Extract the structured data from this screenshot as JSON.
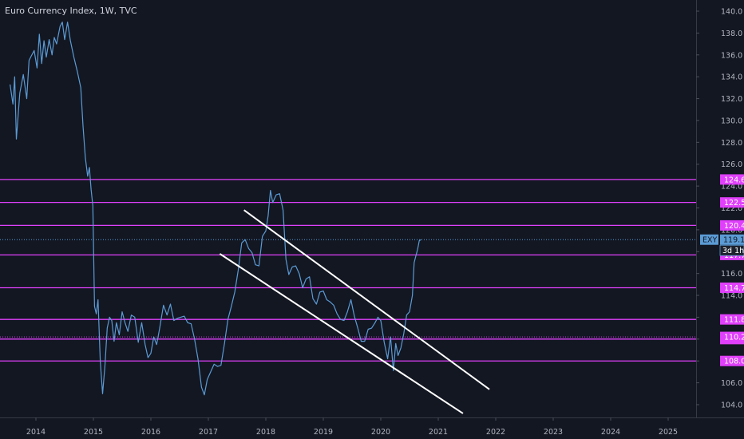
{
  "header": {
    "title": "Euro Currency Index, 1W, TVC"
  },
  "chart_data": {
    "type": "line",
    "title": "Euro Currency Index, 1W, TVC",
    "xlabel": "",
    "ylabel": "",
    "ylim": [
      103,
      140.5
    ],
    "xlim": [
      2013.55,
      2026.0
    ],
    "x_ticks": [
      "2014",
      "2015",
      "2016",
      "2017",
      "2018",
      "2019",
      "2020",
      "2021",
      "2022",
      "2023",
      "2024",
      "2025"
    ],
    "y_ticks": [
      "104.0",
      "106.0",
      "108.0",
      "110.0",
      "112.0",
      "114.0",
      "116.0",
      "118.0",
      "120.0",
      "122.0",
      "124.0",
      "126.0",
      "128.0",
      "130.0",
      "132.0",
      "134.0",
      "136.0",
      "138.0",
      "140.0"
    ],
    "series": [
      {
        "color": "#5b9bd5",
        "points": [
          [
            2013.55,
            133.3
          ],
          [
            2013.6,
            131.5
          ],
          [
            2013.63,
            134.0
          ],
          [
            2013.66,
            128.3
          ],
          [
            2013.72,
            132.5
          ],
          [
            2013.78,
            134.2
          ],
          [
            2013.84,
            132.0
          ],
          [
            2013.88,
            135.5
          ],
          [
            2013.92,
            135.9
          ],
          [
            2013.97,
            136.4
          ],
          [
            2014.02,
            134.8
          ],
          [
            2014.06,
            137.9
          ],
          [
            2014.1,
            135.2
          ],
          [
            2014.14,
            137.3
          ],
          [
            2014.18,
            135.8
          ],
          [
            2014.23,
            137.4
          ],
          [
            2014.28,
            136.0
          ],
          [
            2014.32,
            137.6
          ],
          [
            2014.36,
            137.0
          ],
          [
            2014.42,
            138.6
          ],
          [
            2014.46,
            139.0
          ],
          [
            2014.5,
            137.4
          ],
          [
            2014.55,
            139.0
          ],
          [
            2014.6,
            137.3
          ],
          [
            2014.66,
            135.8
          ],
          [
            2014.72,
            134.5
          ],
          [
            2014.78,
            133.0
          ],
          [
            2014.82,
            129.5
          ],
          [
            2014.86,
            126.6
          ],
          [
            2014.9,
            124.9
          ],
          [
            2014.93,
            125.7
          ],
          [
            2014.96,
            123.7
          ],
          [
            2014.99,
            122.2
          ],
          [
            2015.02,
            113.0
          ],
          [
            2015.05,
            112.3
          ],
          [
            2015.08,
            113.6
          ],
          [
            2015.12,
            108.0
          ],
          [
            2015.16,
            105.0
          ],
          [
            2015.2,
            107.5
          ],
          [
            2015.24,
            111.0
          ],
          [
            2015.28,
            112.0
          ],
          [
            2015.32,
            111.7
          ],
          [
            2015.36,
            109.8
          ],
          [
            2015.4,
            111.5
          ],
          [
            2015.45,
            110.4
          ],
          [
            2015.5,
            112.5
          ],
          [
            2015.55,
            111.5
          ],
          [
            2015.6,
            110.7
          ],
          [
            2015.66,
            112.2
          ],
          [
            2015.72,
            112.0
          ],
          [
            2015.78,
            109.7
          ],
          [
            2015.84,
            111.5
          ],
          [
            2015.9,
            109.5
          ],
          [
            2015.95,
            108.3
          ],
          [
            2016.0,
            108.7
          ],
          [
            2016.05,
            110.2
          ],
          [
            2016.1,
            109.5
          ],
          [
            2016.15,
            110.9
          ],
          [
            2016.22,
            113.1
          ],
          [
            2016.28,
            112.2
          ],
          [
            2016.34,
            113.2
          ],
          [
            2016.4,
            111.7
          ],
          [
            2016.46,
            111.9
          ],
          [
            2016.52,
            112.0
          ],
          [
            2016.58,
            112.1
          ],
          [
            2016.64,
            111.5
          ],
          [
            2016.7,
            111.4
          ],
          [
            2016.76,
            110.0
          ],
          [
            2016.82,
            108.2
          ],
          [
            2016.88,
            105.6
          ],
          [
            2016.93,
            104.9
          ],
          [
            2016.98,
            106.3
          ],
          [
            2017.04,
            107.0
          ],
          [
            2017.1,
            107.7
          ],
          [
            2017.16,
            107.5
          ],
          [
            2017.22,
            107.6
          ],
          [
            2017.28,
            109.6
          ],
          [
            2017.34,
            111.8
          ],
          [
            2017.4,
            113.0
          ],
          [
            2017.46,
            114.3
          ],
          [
            2017.52,
            116.3
          ],
          [
            2017.58,
            118.8
          ],
          [
            2017.64,
            119.1
          ],
          [
            2017.7,
            118.3
          ],
          [
            2017.76,
            117.9
          ],
          [
            2017.82,
            116.8
          ],
          [
            2017.88,
            116.7
          ],
          [
            2017.94,
            119.4
          ],
          [
            2018.0,
            119.9
          ],
          [
            2018.04,
            121.3
          ],
          [
            2018.08,
            123.6
          ],
          [
            2018.12,
            122.5
          ],
          [
            2018.18,
            123.2
          ],
          [
            2018.24,
            123.3
          ],
          [
            2018.3,
            121.8
          ],
          [
            2018.35,
            117.3
          ],
          [
            2018.4,
            115.9
          ],
          [
            2018.46,
            116.6
          ],
          [
            2018.52,
            116.7
          ],
          [
            2018.58,
            116.0
          ],
          [
            2018.64,
            114.7
          ],
          [
            2018.7,
            115.5
          ],
          [
            2018.76,
            115.7
          ],
          [
            2018.82,
            113.7
          ],
          [
            2018.88,
            113.2
          ],
          [
            2018.94,
            114.3
          ],
          [
            2019.0,
            114.4
          ],
          [
            2019.06,
            113.6
          ],
          [
            2019.12,
            113.4
          ],
          [
            2019.18,
            113.1
          ],
          [
            2019.24,
            112.3
          ],
          [
            2019.3,
            111.8
          ],
          [
            2019.36,
            111.7
          ],
          [
            2019.42,
            112.5
          ],
          [
            2019.48,
            113.6
          ],
          [
            2019.54,
            112.1
          ],
          [
            2019.6,
            111.0
          ],
          [
            2019.66,
            109.8
          ],
          [
            2019.72,
            109.8
          ],
          [
            2019.78,
            110.9
          ],
          [
            2019.84,
            111.0
          ],
          [
            2019.9,
            111.5
          ],
          [
            2019.95,
            112.0
          ],
          [
            2020.0,
            111.7
          ],
          [
            2020.06,
            109.7
          ],
          [
            2020.12,
            108.2
          ],
          [
            2020.17,
            110.2
          ],
          [
            2020.22,
            107.1
          ],
          [
            2020.26,
            109.6
          ],
          [
            2020.3,
            108.5
          ],
          [
            2020.35,
            109.2
          ],
          [
            2020.4,
            110.5
          ],
          [
            2020.45,
            112.2
          ],
          [
            2020.5,
            112.5
          ],
          [
            2020.55,
            114.0
          ],
          [
            2020.58,
            117.0
          ],
          [
            2020.61,
            117.6
          ],
          [
            2020.64,
            118.2
          ],
          [
            2020.67,
            119.0
          ],
          [
            2020.7,
            119.1
          ]
        ]
      }
    ],
    "horizontal_levels": [
      {
        "value": 124.6,
        "label": "124.6"
      },
      {
        "value": 122.5,
        "label": "122.5"
      },
      {
        "value": 120.4,
        "label": "120.4"
      },
      {
        "value": 117.7,
        "label": "117.7"
      },
      {
        "value": 114.7,
        "label": "114.7"
      },
      {
        "value": 111.8,
        "label": "111.8"
      },
      {
        "value": 110.0,
        "label": "110.0"
      },
      {
        "value": 108.0,
        "label": "108.0"
      }
    ],
    "dotted_levels": [
      {
        "value": 110.2,
        "label": "110.2"
      }
    ],
    "current_price": {
      "value": 119.1,
      "symbol": "EXY",
      "label": "119.1",
      "countdown": "3d 1h"
    },
    "channel_lines": [
      {
        "x1": 2017.62,
        "y1": 121.8,
        "x2": 2021.89,
        "y2": 105.4
      },
      {
        "x1": 2017.2,
        "y1": 117.8,
        "x2": 2021.43,
        "y2": 103.2
      }
    ],
    "level_color": "#e040fb",
    "line_color": "#5b9bd5",
    "channel_color": "#ffffff",
    "background": "#131722",
    "grid": false
  }
}
